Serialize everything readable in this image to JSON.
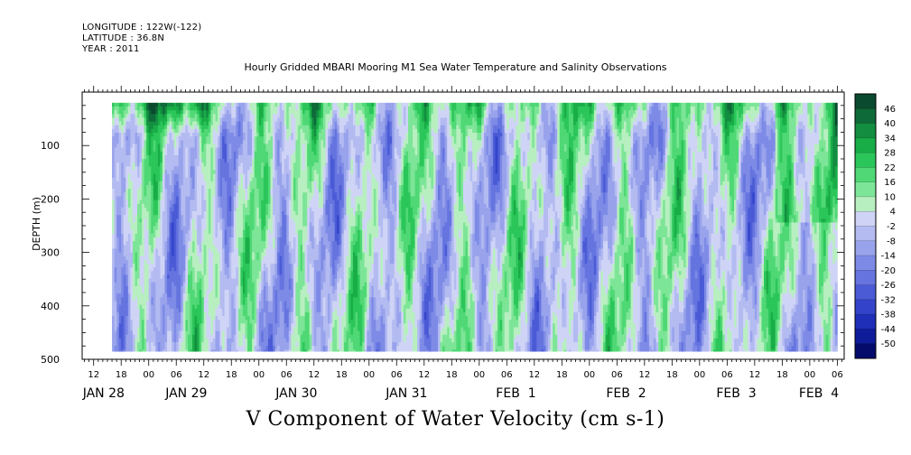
{
  "header": {
    "longitude": "LONGITUDE : 122W(-122)",
    "latitude": "LATITUDE : 36.8N",
    "year": "YEAR : 2011"
  },
  "chart_data": {
    "type": "heatmap",
    "title": "Hourly Gridded MBARI Mooring M1 Sea Water Temperature and Salinity Observations",
    "xlabel": "V Component of Water Velocity (cm s-1)",
    "ylabel": "DEPTH (m)",
    "x_unit": "hours from 2011-01-28 00:00",
    "xlim": [
      9.5,
      175.5
    ],
    "data_x_range": [
      16,
      174
    ],
    "ylim": [
      500,
      0
    ],
    "data_y_range": [
      20,
      485
    ],
    "y_ticks": [
      100,
      200,
      300,
      400,
      500
    ],
    "x_hour_labels": [
      "12",
      "18",
      "00",
      "06",
      "12",
      "18",
      "00",
      "06",
      "12",
      "18",
      "00",
      "06",
      "12",
      "18",
      "00",
      "06",
      "12",
      "18",
      "00",
      "06",
      "12",
      "18",
      "00",
      "06",
      "12",
      "18",
      "00",
      "06"
    ],
    "x_hour_start": 12,
    "x_date_labels": [
      {
        "label": "JAN 28",
        "hour": 12
      },
      {
        "label": "JAN 29",
        "hour": 30
      },
      {
        "label": "JAN 30",
        "hour": 54
      },
      {
        "label": "JAN 31",
        "hour": 78
      },
      {
        "label": "FEB  1",
        "hour": 102
      },
      {
        "label": "FEB  2",
        "hour": 126
      },
      {
        "label": "FEB  3",
        "hour": 150
      },
      {
        "label": "FEB  4",
        "hour": 168
      }
    ],
    "colorbar": {
      "labels": [
        "46",
        "40",
        "34",
        "28",
        "22",
        "16",
        "10",
        "4",
        "-2",
        "-8",
        "-14",
        "-20",
        "-26",
        "-32",
        "-38",
        "-44",
        "-50"
      ],
      "colors": [
        "#0a4a2e",
        "#0e6a38",
        "#138e40",
        "#19ad47",
        "#2bc65a",
        "#4fd875",
        "#7de597",
        "#b8efc0",
        "#cfd4f6",
        "#b3bbf1",
        "#98a3ec",
        "#7e8be6",
        "#6574df",
        "#4b5bd6",
        "#3344ca",
        "#1f2fb8",
        "#0f1c9a",
        "#050b6b"
      ]
    },
    "value_range": [
      -50,
      46
    ],
    "field_note": "v-velocity (cm s-1) over time and depth, mostly between -30 and +30"
  }
}
